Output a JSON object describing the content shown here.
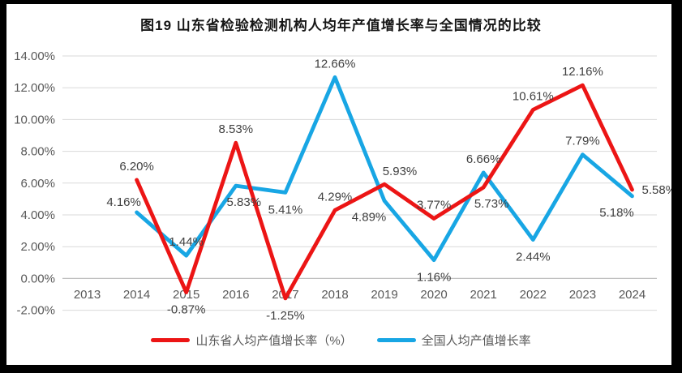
{
  "title": "图19  山东省检验检测机构人均年产值增长率与全国情况的比较",
  "chart_data": {
    "type": "line",
    "title": "图19  山东省检验检测机构人均年产值增长率与全国情况的比较",
    "categories": [
      "2013",
      "2014",
      "2015",
      "2016",
      "2017",
      "2018",
      "2019",
      "2020",
      "2021",
      "2022",
      "2023",
      "2024"
    ],
    "xlabel": "",
    "ylabel": "",
    "ylim": [
      -2,
      14
    ],
    "y_ticks": [
      "14.00%",
      "12.00%",
      "10.00%",
      "8.00%",
      "6.00%",
      "4.00%",
      "2.00%",
      "0.00%",
      "-2.00%"
    ],
    "grid": true,
    "legend_position": "bottom",
    "grid_color": "#d9d9d9",
    "zero_axis_color": "#bfbfbf",
    "axis_label_color": "#595959",
    "data_label_color": "#404040",
    "series": [
      {
        "key": "shandong",
        "name": "山东省人均产值增长率（%）",
        "color": "#ec1515",
        "values": [
          null,
          6.2,
          -0.87,
          8.53,
          -1.25,
          4.29,
          5.93,
          3.77,
          5.73,
          10.61,
          12.16,
          5.58
        ],
        "labels": [
          "",
          "6.20%",
          "-0.87%",
          "8.53%",
          "-1.25%",
          "4.29%",
          "5.93%",
          "3.77%",
          "5.73%",
          "10.61%",
          "12.16%",
          "5.58%"
        ],
        "label_pos": [
          "",
          "above",
          "below",
          "above",
          "below",
          "above",
          "above-right",
          "above",
          "below-right",
          "above",
          "above",
          "right"
        ]
      },
      {
        "key": "national",
        "name": "全国人均产值增长率",
        "color": "#18a6e4",
        "values": [
          null,
          4.16,
          1.44,
          5.83,
          5.41,
          12.66,
          4.89,
          1.16,
          6.66,
          2.44,
          7.79,
          5.18
        ],
        "labels": [
          "",
          "4.16%",
          "1.44%",
          "5.83%",
          "5.41%",
          "12.66%",
          "4.89%",
          "1.16%",
          "6.66%",
          "2.44%",
          "7.79%",
          "5.18%"
        ],
        "label_pos": [
          "",
          "above-left",
          "above",
          "below-right",
          "below",
          "above",
          "below-left",
          "below",
          "above",
          "below",
          "above",
          "below-left"
        ]
      }
    ]
  }
}
